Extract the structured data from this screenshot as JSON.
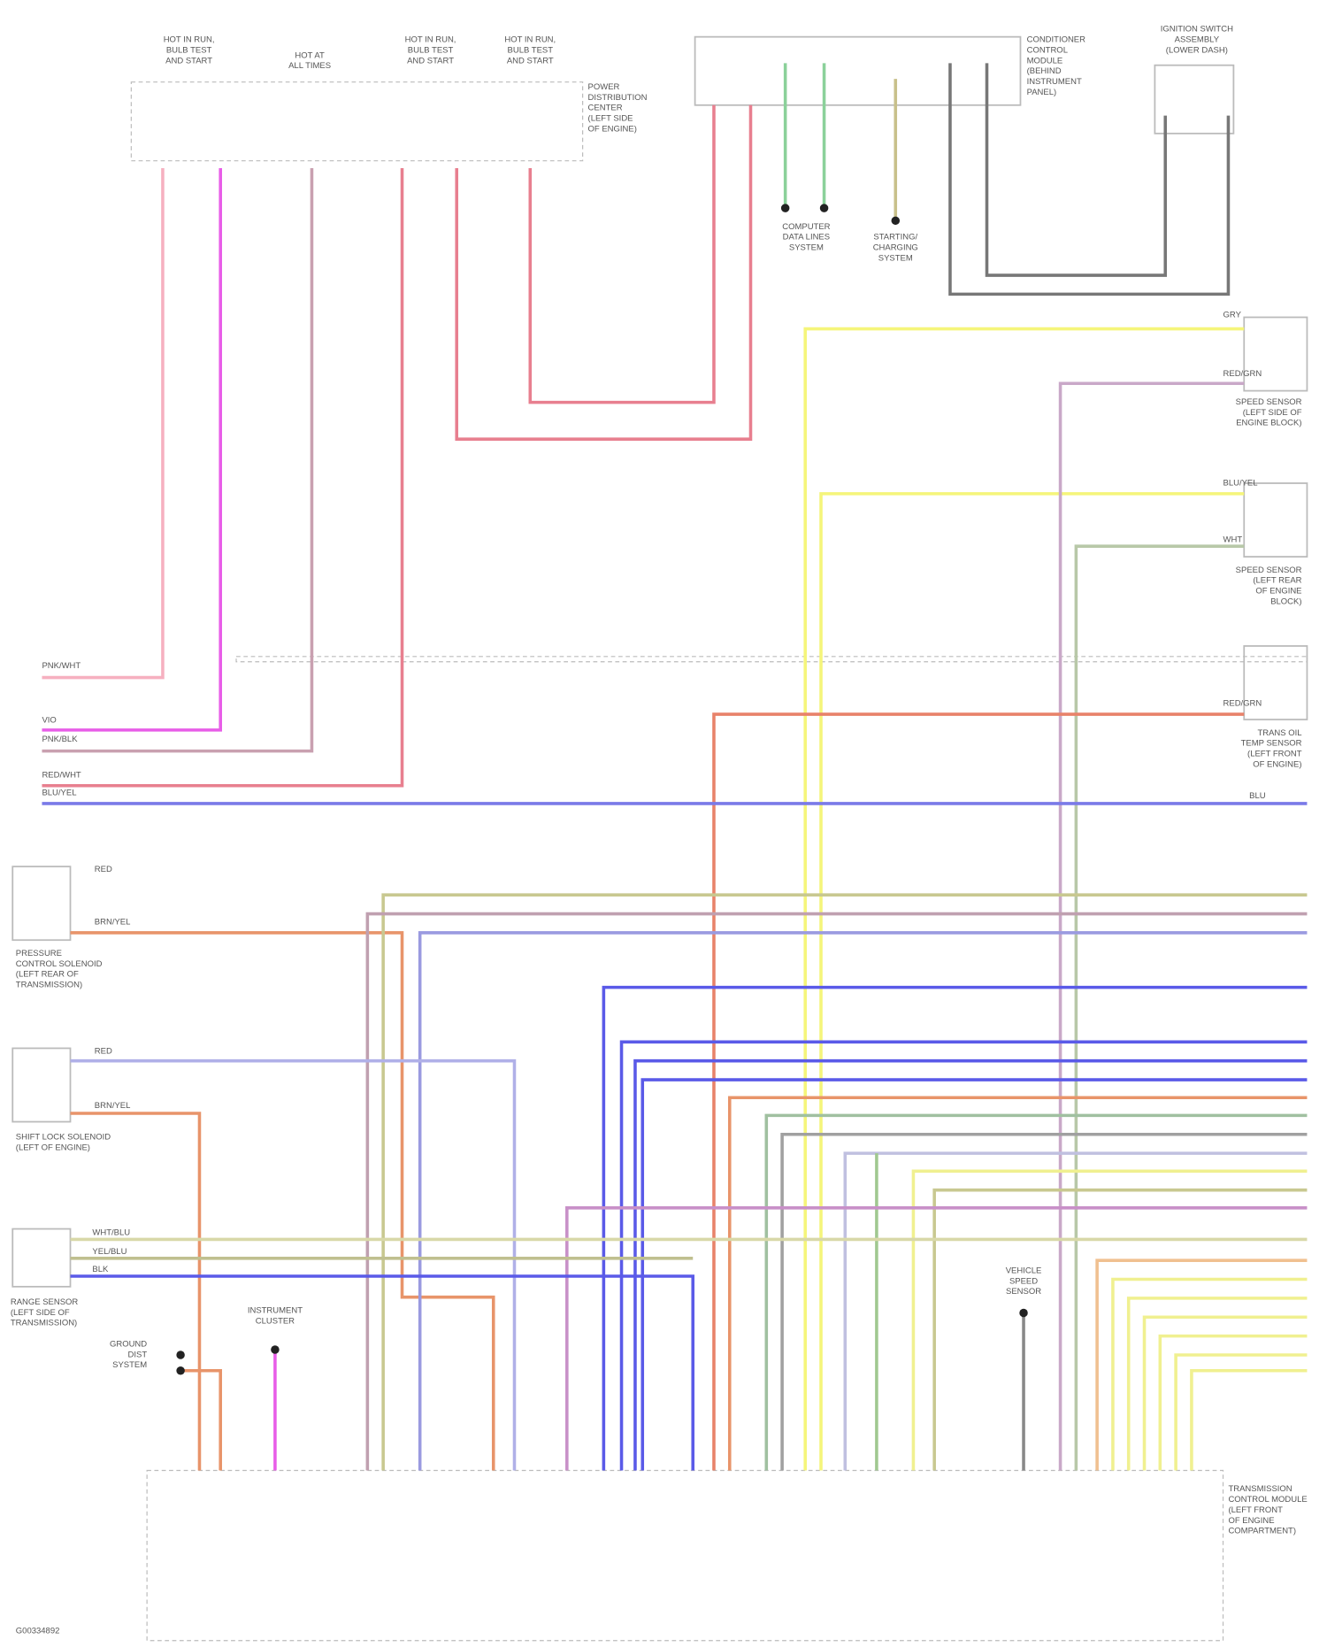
{
  "components": [
    {
      "lines": [
        "HOT IN RUN,",
        "BULB TEST",
        "AND START"
      ]
    },
    {
      "lines": [
        "HOT AT",
        "ALL TIMES"
      ]
    },
    {
      "lines": [
        "HOT IN RUN,",
        "BULB TEST",
        "AND START"
      ]
    },
    {
      "lines": [
        "HOT IN RUN,",
        "BULB TEST",
        "AND START"
      ]
    },
    {
      "lines": [
        "POWER",
        "DISTRIBUTION",
        "CENTER",
        "(LEFT SIDE",
        "OF ENGINE)"
      ]
    },
    {
      "lines": [
        "CONDITIONER",
        "CONTROL",
        "MODULE",
        "(BEHIND",
        "INSTRUMENT",
        "PANEL)"
      ]
    },
    {
      "lines": [
        "IGNITION SWITCH",
        "ASSEMBLY",
        "(LOWER DASH)"
      ]
    },
    {
      "lines": [
        "COMPUTER",
        "DATA LINES",
        "SYSTEM"
      ]
    },
    {
      "lines": [
        "STARTING/",
        "CHARGING",
        "SYSTEM"
      ]
    },
    {
      "lines": [
        "SPEED SENSOR",
        "(LEFT SIDE OF",
        "ENGINE BLOCK)"
      ]
    },
    {
      "lines": [
        "SPEED SENSOR",
        "(LEFT REAR",
        "OF ENGINE",
        "BLOCK)"
      ]
    },
    {
      "lines": [
        "TRANS OIL",
        "TEMP SENSOR",
        "(LEFT FRONT",
        "OF ENGINE)"
      ]
    },
    {
      "lines": [
        "PRESSURE",
        "CONTROL SOLENOID",
        "(LEFT REAR OF",
        "TRANSMISSION)"
      ]
    },
    {
      "lines": [
        "SHIFT LOCK SOLENOID",
        "(LEFT OF ENGINE)"
      ]
    },
    {
      "lines": [
        "RANGE SENSOR",
        "(LEFT SIDE OF",
        "TRANSMISSION)"
      ]
    },
    {
      "lines": [
        "GROUND",
        "DIST",
        "SYSTEM"
      ]
    },
    {
      "lines": [
        "INSTRUMENT",
        "CLUSTER"
      ]
    },
    {
      "lines": [
        "VEHICLE",
        "SPEED",
        "SENSOR"
      ]
    },
    {
      "lines": [
        "TRANSMISSION",
        "CONTROL MODULE",
        "(LEFT FRONT",
        "OF ENGINE",
        "COMPARTMENT)"
      ]
    }
  ],
  "wire_labels": [
    "PNK/WHT",
    "VIO",
    "PNK/BLK",
    "RED/WHT",
    "BLU/YEL",
    "RED",
    "BRN/YEL",
    "RED",
    "BRN/YEL",
    "GRY",
    "RED/GRN",
    "BLU/YEL",
    "WHT",
    "RED/GRN",
    "WHT/BLU",
    "YEL/BLU",
    "BLK",
    "BLU"
  ],
  "footer": "G00334892"
}
